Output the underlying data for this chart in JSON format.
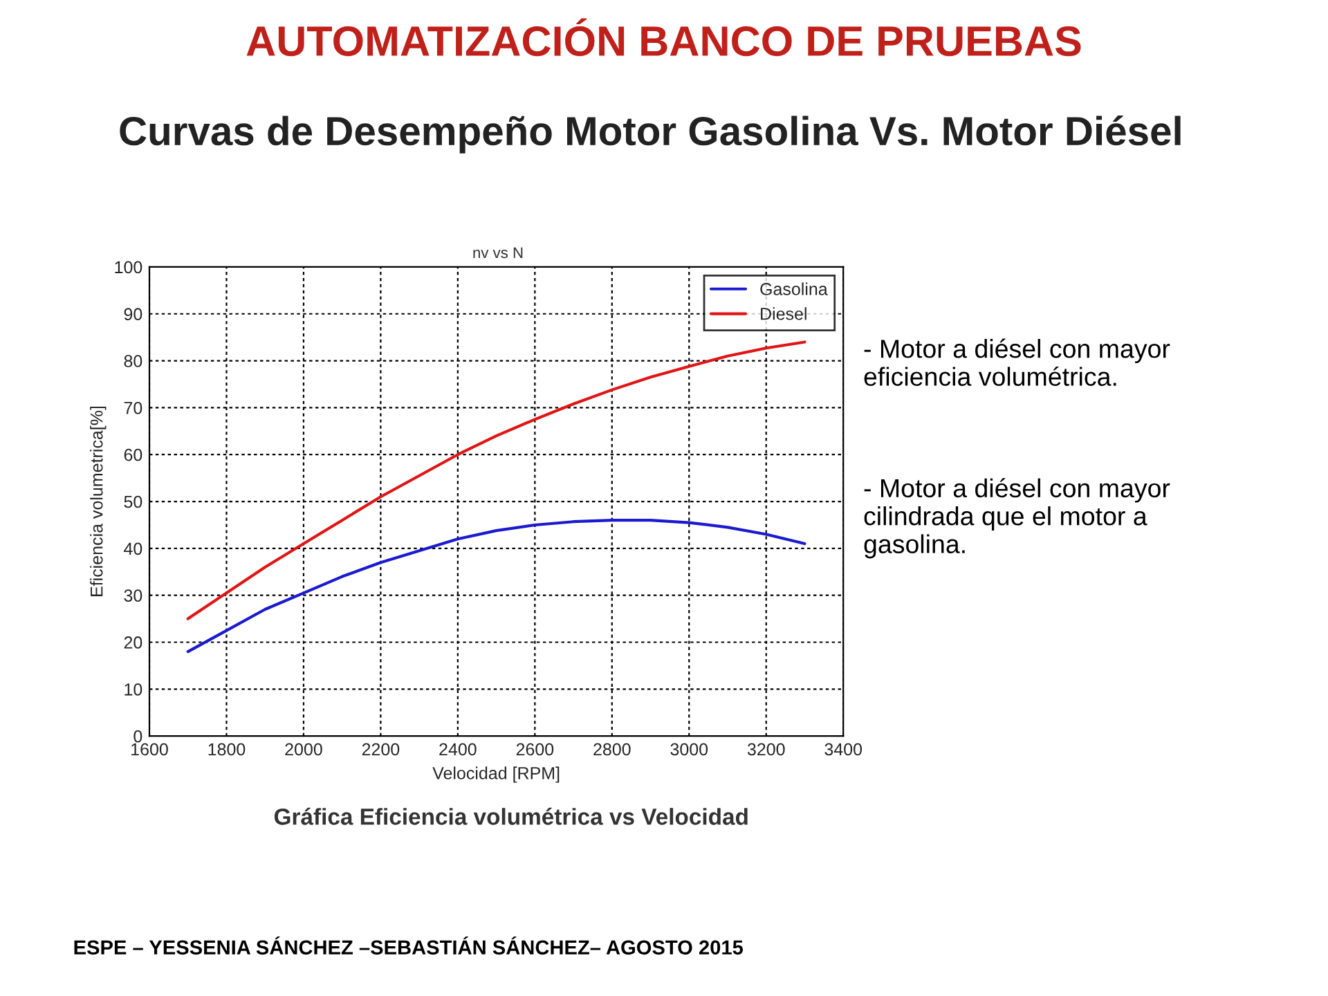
{
  "chart_data": {
    "type": "line",
    "title": "AUTOMATIZACIÓN BANCO DE PRUEBAS",
    "subtitle": "Curvas de Desempeño Motor Gasolina Vs. Motor Diésel",
    "annotations": [
      "nv vs N",
      "- Motor a diésel con mayor eficiencia volumétrica.",
      "- Motor a diésel con mayor cilindrada que el motor a gasolina.",
      "Gráfica Eficiencia volumétrica vs Velocidad",
      "ESPE – YESSENIA SÁNCHEZ –SEBASTIÁN SÁNCHEZ– AGOSTO 2015"
    ],
    "xlabel": "Velocidad [RPM]",
    "ylabel": "Eficiencia volumetrica[%]",
    "x": [
      1700,
      1800,
      1900,
      2000,
      2100,
      2200,
      2300,
      2400,
      2500,
      2600,
      2700,
      2800,
      2900,
      3000,
      3100,
      3200,
      3300
    ],
    "series": [
      {
        "name": "Gasolina",
        "color": "#1a1ad0",
        "values": [
          18,
          22.5,
          27,
          30.5,
          34,
          37,
          39.5,
          42,
          43.8,
          45,
          45.7,
          46,
          46,
          45.5,
          44.5,
          43,
          41
        ]
      },
      {
        "name": "Diesel",
        "color": "#e01515",
        "values": [
          25,
          30.5,
          36,
          41,
          46,
          51,
          55.5,
          60,
          64,
          67.5,
          70.8,
          73.8,
          76.5,
          78.8,
          81,
          82.7,
          84
        ]
      }
    ],
    "xlim": [
      1600,
      3400
    ],
    "xticks": [
      1600,
      1800,
      2000,
      2200,
      2400,
      2600,
      2800,
      3000,
      3200,
      3400
    ],
    "ylim": [
      0,
      100
    ],
    "yticks": [
      0,
      10,
      20,
      30,
      40,
      50,
      60,
      70,
      80,
      90,
      100
    ],
    "grid": true,
    "legend": "top right",
    "line_style": "solid",
    "marker": "none"
  }
}
